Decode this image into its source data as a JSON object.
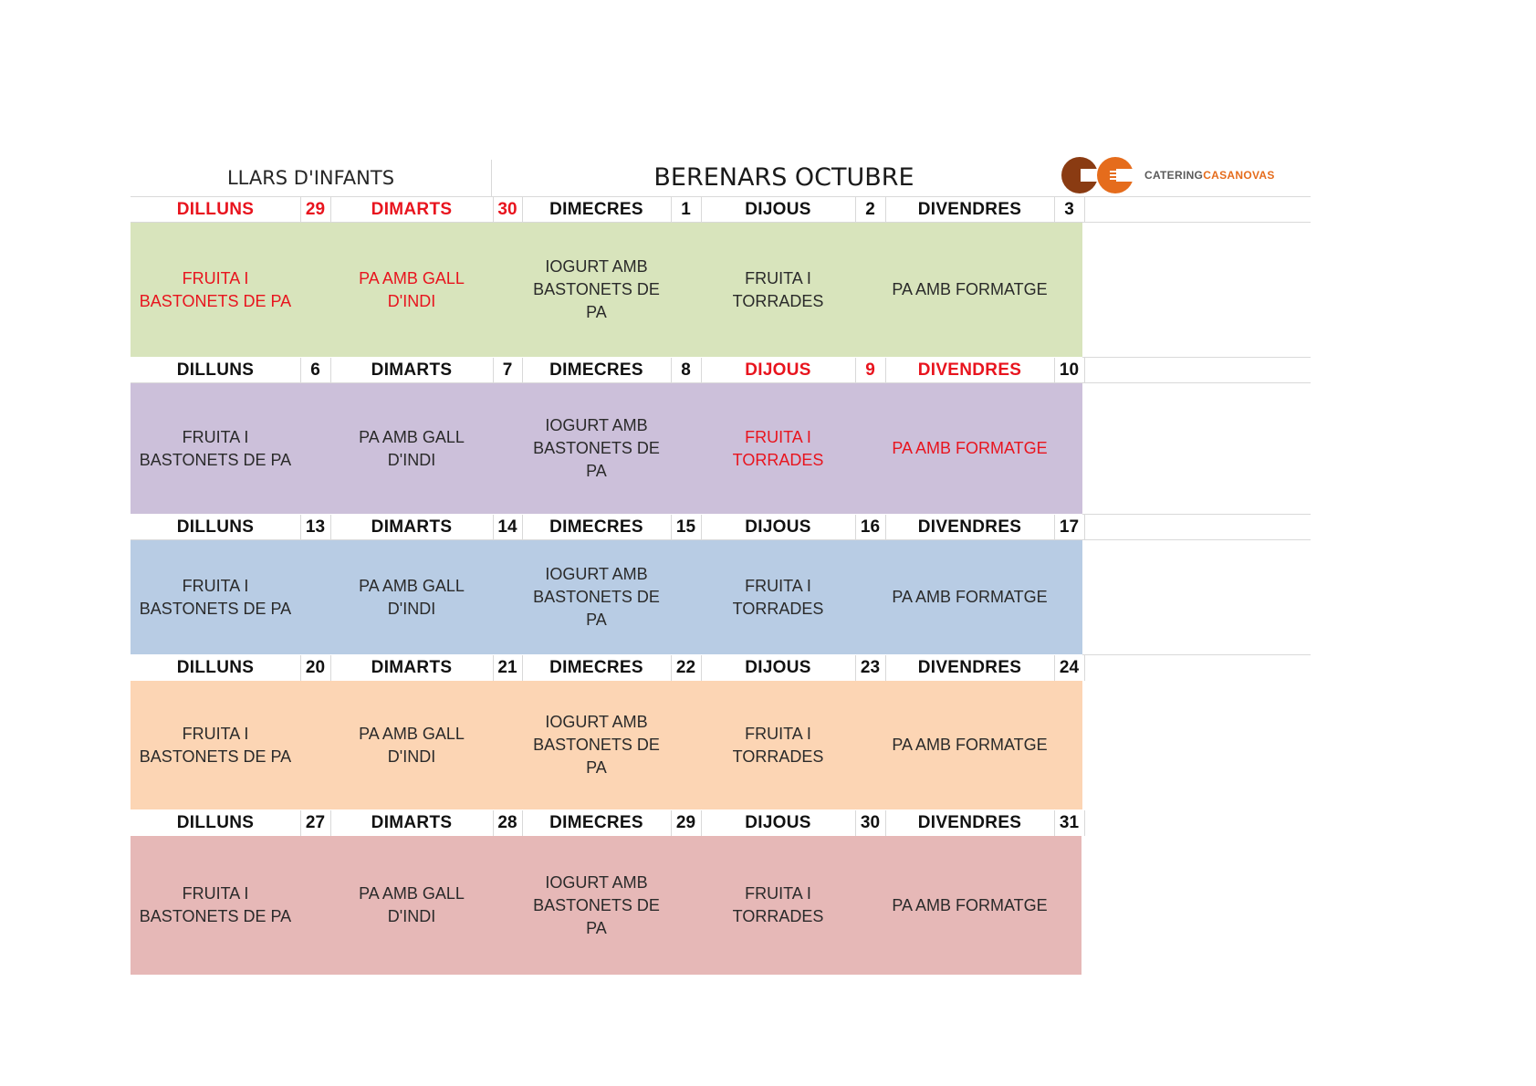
{
  "header": {
    "left_label": "LLARS D'INFANTS",
    "title": "BERENARS OCTUBRE",
    "logo_text_1": "CATERING",
    "logo_text_2": "CASANOVAS"
  },
  "colors": {
    "week1": "#d8e4bc",
    "week2": "#ccc0da",
    "week3": "#b8cce4",
    "week4": "#fcd5b4",
    "week5": "#e6b8b7",
    "highlight_red": "#e8141e",
    "logo_brown": "#8a3b12",
    "logo_orange": "#e56c1c"
  },
  "weeks": [
    {
      "days": [
        {
          "name": "DILLUNS",
          "num": "29",
          "name_red": true,
          "num_red": true,
          "meal": "FRUITA I BASTONETS DE PA",
          "meal_red": true
        },
        {
          "name": "DIMARTS",
          "num": "30",
          "name_red": true,
          "num_red": true,
          "meal": "PA AMB GALL D'INDI",
          "meal_red": true
        },
        {
          "name": "DIMECRES",
          "num": "1",
          "meal": "IOGURT AMB BASTONETS DE PA"
        },
        {
          "name": "DIJOUS",
          "num": "2",
          "meal": "FRUITA I TORRADES"
        },
        {
          "name": "DIVENDRES",
          "num": "3",
          "meal": "PA AMB FORMATGE"
        }
      ]
    },
    {
      "days": [
        {
          "name": "DILLUNS",
          "num": "6",
          "meal": "FRUITA I BASTONETS DE PA"
        },
        {
          "name": "DIMARTS",
          "num": "7",
          "meal": "PA AMB GALL D'INDI"
        },
        {
          "name": "DIMECRES",
          "num": "8",
          "meal": "IOGURT AMB BASTONETS DE PA"
        },
        {
          "name": "DIJOUS",
          "num": "9",
          "name_red": true,
          "num_red": true,
          "meal": "FRUITA I TORRADES",
          "meal_red": true
        },
        {
          "name": "DIVENDRES",
          "num": "10",
          "name_red": true,
          "meal": "PA AMB FORMATGE",
          "meal_red": true
        }
      ]
    },
    {
      "days": [
        {
          "name": "DILLUNS",
          "num": "13",
          "meal": "FRUITA I BASTONETS DE PA"
        },
        {
          "name": "DIMARTS",
          "num": "14",
          "meal": "PA AMB GALL D'INDI"
        },
        {
          "name": "DIMECRES",
          "num": "15",
          "meal": "IOGURT AMB BASTONETS DE PA"
        },
        {
          "name": "DIJOUS",
          "num": "16",
          "meal": "FRUITA I TORRADES"
        },
        {
          "name": "DIVENDRES",
          "num": "17",
          "meal": "PA AMB FORMATGE"
        }
      ]
    },
    {
      "days": [
        {
          "name": "DILLUNS",
          "num": "20",
          "meal": "FRUITA I BASTONETS DE PA"
        },
        {
          "name": "DIMARTS",
          "num": "21",
          "meal": "PA AMB GALL D'INDI"
        },
        {
          "name": "DIMECRES",
          "num": "22",
          "meal": "IOGURT AMB BASTONETS DE PA"
        },
        {
          "name": "DIJOUS",
          "num": "23",
          "meal": "FRUITA I TORRADES"
        },
        {
          "name": "DIVENDRES",
          "num": "24",
          "meal": "PA AMB FORMATGE"
        }
      ]
    },
    {
      "days": [
        {
          "name": "DILLUNS",
          "num": "27",
          "meal": "FRUITA I BASTONETS DE PA"
        },
        {
          "name": "DIMARTS",
          "num": "28",
          "meal": "PA AMB GALL D'INDI"
        },
        {
          "name": "DIMECRES",
          "num": "29",
          "meal": "IOGURT AMB BASTONETS DE PA"
        },
        {
          "name": "DIJOUS",
          "num": "30",
          "meal": "FRUITA I TORRADES"
        },
        {
          "name": "DIVENDRES",
          "num": "31",
          "meal": "PA AMB FORMATGE"
        }
      ]
    }
  ]
}
